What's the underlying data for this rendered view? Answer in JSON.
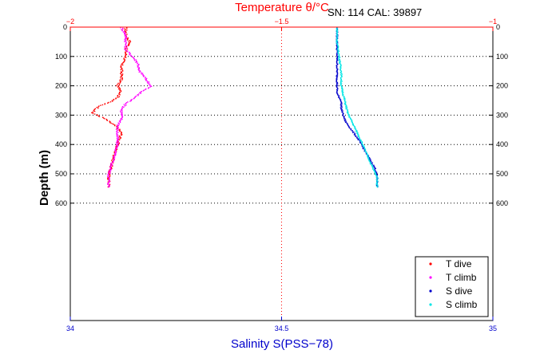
{
  "chart_data": {
    "type": "scatter",
    "top_axis_title": "Temperature θ/°C",
    "annotation": "SN: 114  CAL: 39897",
    "ylabel": "Depth (m)",
    "xlabel": "Salinity S(PSS−78)",
    "top_axis": {
      "range": [
        -2,
        -1
      ],
      "ticks": [
        "−2",
        "−1.5",
        "−1"
      ],
      "tick_values": [
        -2,
        -1.5,
        -1
      ],
      "color": "#ff0000"
    },
    "bottom_axis": {
      "range": [
        34,
        35
      ],
      "ticks": [
        "34",
        "34.5",
        "35"
      ],
      "tick_values": [
        34,
        34.5,
        35
      ],
      "color": "#0000cc"
    },
    "y_axis": {
      "range": [
        0,
        1000
      ],
      "reversed": true,
      "ticks": [
        "0",
        "100",
        "200",
        "300",
        "400",
        "500",
        "600"
      ],
      "tick_values": [
        0,
        100,
        200,
        300,
        400,
        500,
        600
      ]
    },
    "grid": "dotted horizontal at labeled depths; dotted vertical at center",
    "legend_placement": "bottom-right",
    "series": [
      {
        "name": "T dive",
        "axis": "top",
        "color": "#ff0000",
        "x": [
          -1.87,
          -1.87,
          -1.86,
          -1.87,
          -1.87,
          -1.88,
          -1.88,
          -1.88,
          -1.89,
          -1.88,
          -1.89,
          -1.91,
          -1.93,
          -1.95,
          -1.92,
          -1.9,
          -1.89,
          -1.88,
          -1.89,
          -1.9,
          -1.91,
          -1.91
        ],
        "y": [
          0,
          25,
          50,
          75,
          100,
          125,
          150,
          175,
          200,
          215,
          240,
          255,
          265,
          290,
          310,
          330,
          340,
          360,
          400,
          450,
          500,
          545
        ]
      },
      {
        "name": "T climb",
        "axis": "top",
        "color": "#ff00ff",
        "x": [
          -1.88,
          -1.87,
          -1.87,
          -1.87,
          -1.86,
          -1.85,
          -1.84,
          -1.84,
          -1.83,
          -1.82,
          -1.81,
          -1.83,
          -1.85,
          -1.87,
          -1.88,
          -1.88,
          -1.89,
          -1.89,
          -1.9,
          -1.91,
          -1.91
        ],
        "y": [
          0,
          25,
          50,
          75,
          90,
          105,
          125,
          145,
          160,
          180,
          200,
          215,
          240,
          260,
          280,
          310,
          340,
          400,
          450,
          500,
          545
        ]
      },
      {
        "name": "S dive",
        "axis": "bottom",
        "color": "#0000cc",
        "x": [
          34.63,
          34.63,
          34.63,
          34.63,
          34.63,
          34.63,
          34.64,
          34.64,
          34.645,
          34.65,
          34.66,
          34.68,
          34.7,
          34.72,
          34.725,
          34.725
        ],
        "y": [
          0,
          50,
          100,
          150,
          200,
          225,
          250,
          275,
          300,
          320,
          340,
          380,
          430,
          480,
          510,
          545
        ]
      },
      {
        "name": "S climb",
        "axis": "bottom",
        "color": "#00e5e5",
        "x": [
          34.63,
          34.63,
          34.635,
          34.64,
          34.64,
          34.645,
          34.65,
          34.655,
          34.665,
          34.675,
          34.685,
          34.7,
          34.715,
          34.725,
          34.725
        ],
        "y": [
          0,
          50,
          100,
          150,
          200,
          230,
          260,
          290,
          320,
          350,
          380,
          430,
          480,
          510,
          545
        ]
      }
    ]
  }
}
